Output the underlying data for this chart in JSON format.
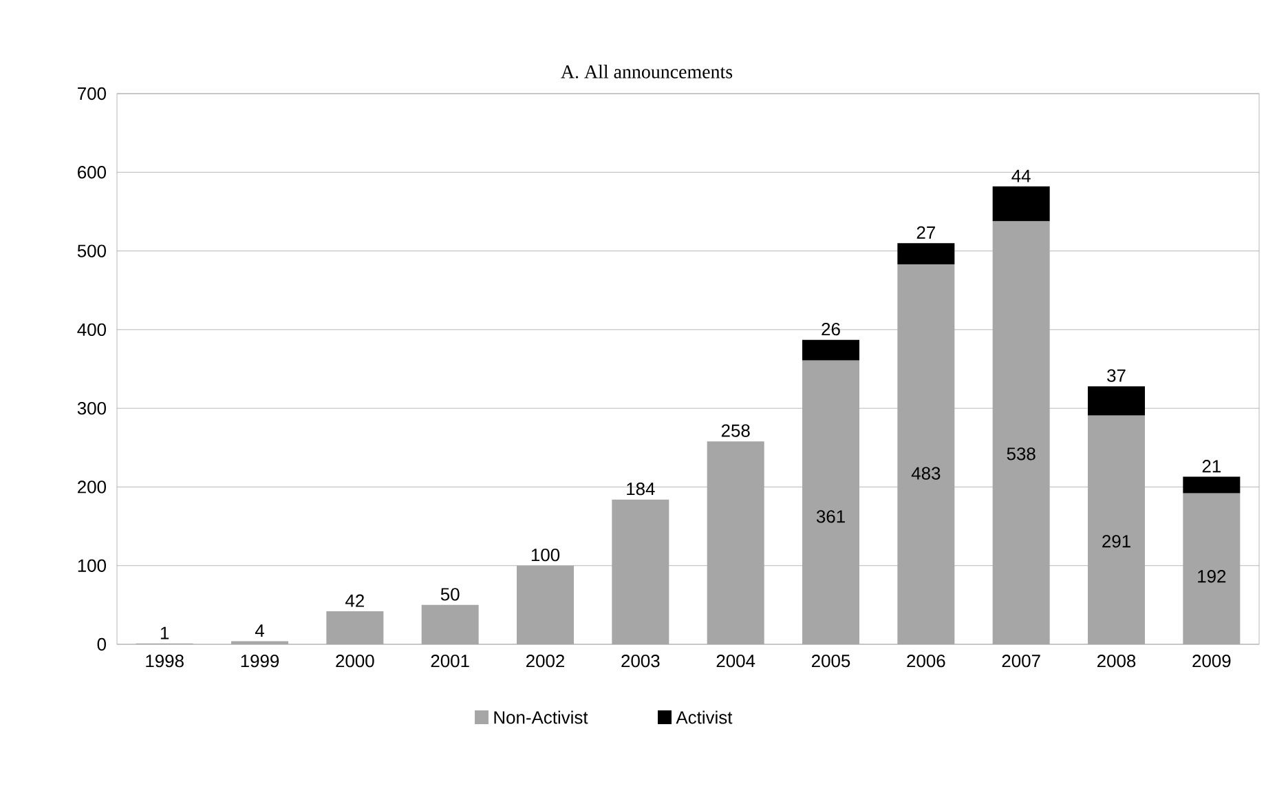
{
  "chart_data": {
    "type": "bar",
    "stacked": true,
    "title": "A.   All announcements",
    "categories": [
      "1998",
      "1999",
      "2000",
      "2001",
      "2002",
      "2003",
      "2004",
      "2005",
      "2006",
      "2007",
      "2008",
      "2009"
    ],
    "series": [
      {
        "name": "Non-Activist",
        "color": "#a6a6a6",
        "values": [
          1,
          4,
          42,
          50,
          100,
          184,
          258,
          361,
          483,
          538,
          291,
          192
        ]
      },
      {
        "name": "Activist",
        "color": "#000000",
        "values": [
          null,
          null,
          null,
          null,
          null,
          null,
          null,
          26,
          27,
          44,
          37,
          21
        ]
      }
    ],
    "ylim": [
      0,
      700
    ],
    "yticks": [
      0,
      100,
      200,
      300,
      400,
      500,
      600,
      700
    ],
    "grid": "y",
    "legend": "bottom",
    "data_labels": true
  }
}
